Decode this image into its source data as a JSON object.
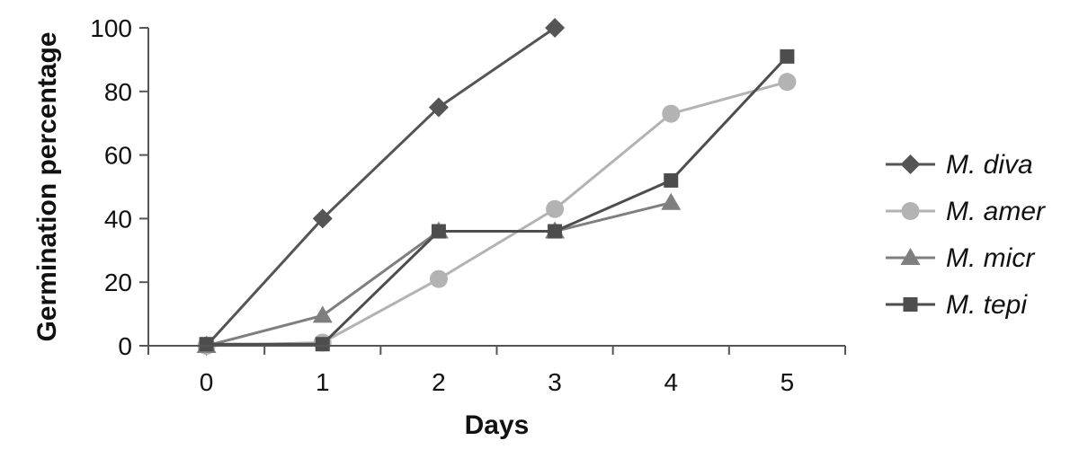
{
  "chart_data": {
    "type": "line",
    "title": "",
    "xlabel": "Days",
    "ylabel": "Germination percentage",
    "x": [
      0,
      1,
      2,
      3,
      4,
      5
    ],
    "xlim": [
      0,
      5
    ],
    "ylim": [
      0,
      100
    ],
    "yticks": [
      0,
      20,
      40,
      60,
      80,
      100
    ],
    "grid": false,
    "legend_position": "right",
    "series": [
      {
        "name": "M. diva",
        "marker": "diamond",
        "color": "#555555",
        "points": [
          [
            0,
            0
          ],
          [
            1,
            40
          ],
          [
            2,
            75
          ],
          [
            3,
            100
          ]
        ]
      },
      {
        "name": "M. amer",
        "marker": "circle",
        "color": "#b3b3b3",
        "points": [
          [
            0,
            0
          ],
          [
            1,
            1
          ],
          [
            2,
            21
          ],
          [
            3,
            43
          ],
          [
            4,
            73
          ],
          [
            5,
            83
          ]
        ]
      },
      {
        "name": "M. micr",
        "marker": "triangle",
        "color": "#7f7f7f",
        "points": [
          [
            0,
            0
          ],
          [
            1,
            9.5
          ],
          [
            2,
            36
          ],
          [
            3,
            36
          ],
          [
            4,
            45
          ]
        ]
      },
      {
        "name": "M. tepi",
        "marker": "square",
        "color": "#4d4d4d",
        "points": [
          [
            0,
            0.5
          ],
          [
            1,
            0.5
          ],
          [
            2,
            36
          ],
          [
            3,
            36
          ],
          [
            4,
            52
          ],
          [
            5,
            91
          ]
        ]
      }
    ]
  }
}
